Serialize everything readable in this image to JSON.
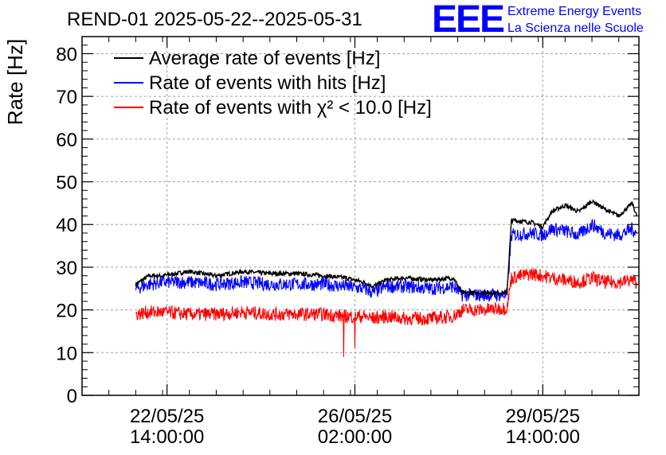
{
  "header": {
    "title": "REND-01 2025-05-22--2025-05-31",
    "logo_text": "EEE",
    "org_line1": "Extreme Energy Events",
    "org_line2": "La Scienza nelle Scuole"
  },
  "colors": {
    "avg": "#000000",
    "hits": "#0000ff",
    "chi2": "#ff0000",
    "logo": "#0000ff"
  },
  "chart_data": {
    "type": "line",
    "title": "REND-01 2025-05-22--2025-05-31",
    "ylabel": "Rate [Hz]",
    "xlabel": "",
    "ylim": [
      0,
      84
    ],
    "yticks": [
      0,
      10,
      20,
      30,
      40,
      50,
      60,
      70,
      80
    ],
    "xlim": [
      "2025-05-21 00:00",
      "2025-05-31 09:00"
    ],
    "xticks": [
      {
        "at": "2025-05-22 14:00",
        "line1": "22/05/25",
        "line2": "14:00:00"
      },
      {
        "at": "2025-05-26 02:00",
        "line1": "26/05/25",
        "line2": "02:00:00"
      },
      {
        "at": "2025-05-29 14:00",
        "line1": "29/05/25",
        "line2": "14:00:00"
      }
    ],
    "grid": true,
    "legend_position": "top-left",
    "series": [
      {
        "name": "Average rate of events [Hz]",
        "color": "#000000",
        "points": [
          [
            "2025-05-22 00:00",
            26.0
          ],
          [
            "2025-05-22 06:00",
            28.0
          ],
          [
            "2025-05-22 12:00",
            28.0
          ],
          [
            "2025-05-23 00:00",
            29.0
          ],
          [
            "2025-05-23 12:00",
            28.0
          ],
          [
            "2025-05-24 00:00",
            29.0
          ],
          [
            "2025-05-24 12:00",
            28.5
          ],
          [
            "2025-05-25 00:00",
            28.5
          ],
          [
            "2025-05-25 12:00",
            28.0
          ],
          [
            "2025-05-25 22:00",
            27.5
          ],
          [
            "2025-05-26 06:00",
            26.5
          ],
          [
            "2025-05-26 10:00",
            25.5
          ],
          [
            "2025-05-26 16:00",
            27.0
          ],
          [
            "2025-05-27 00:00",
            27.5
          ],
          [
            "2025-05-27 12:00",
            27.0
          ],
          [
            "2025-05-27 22:00",
            27.5
          ],
          [
            "2025-05-28 02:00",
            24.0
          ],
          [
            "2025-05-28 12:00",
            24.0
          ],
          [
            "2025-05-28 22:00",
            24.0
          ],
          [
            "2025-05-29 00:00",
            41.0
          ],
          [
            "2025-05-29 09:00",
            40.5
          ],
          [
            "2025-05-29 14:00",
            39.5
          ],
          [
            "2025-05-29 18:00",
            43.0
          ],
          [
            "2025-05-30 00:00",
            44.5
          ],
          [
            "2025-05-30 06:00",
            43.0
          ],
          [
            "2025-05-30 12:00",
            45.5
          ],
          [
            "2025-05-30 18:00",
            43.5
          ],
          [
            "2025-05-31 00:00",
            42.0
          ],
          [
            "2025-05-31 06:00",
            45.0
          ],
          [
            "2025-05-31 08:00",
            42.0
          ]
        ]
      },
      {
        "name": "Rate of events with hits [Hz]",
        "color": "#0000ff",
        "points": [
          [
            "2025-05-22 00:00",
            25.0
          ],
          [
            "2025-05-22 06:00",
            26.0
          ],
          [
            "2025-05-22 12:00",
            26.5
          ],
          [
            "2025-05-23 00:00",
            26.5
          ],
          [
            "2025-05-23 12:00",
            26.0
          ],
          [
            "2025-05-24 00:00",
            26.5
          ],
          [
            "2025-05-24 12:00",
            26.0
          ],
          [
            "2025-05-25 00:00",
            26.0
          ],
          [
            "2025-05-25 12:00",
            26.0
          ],
          [
            "2025-05-25 22:00",
            25.5
          ],
          [
            "2025-05-26 06:00",
            25.0
          ],
          [
            "2025-05-26 10:00",
            24.0
          ],
          [
            "2025-05-26 16:00",
            25.5
          ],
          [
            "2025-05-27 00:00",
            25.5
          ],
          [
            "2025-05-27 12:00",
            25.0
          ],
          [
            "2025-05-27 22:00",
            25.5
          ],
          [
            "2025-05-28 02:00",
            23.5
          ],
          [
            "2025-05-28 12:00",
            23.5
          ],
          [
            "2025-05-28 22:00",
            23.5
          ],
          [
            "2025-05-29 00:00",
            37.5
          ],
          [
            "2025-05-29 09:00",
            38.0
          ],
          [
            "2025-05-29 14:00",
            37.5
          ],
          [
            "2025-05-29 18:00",
            39.0
          ],
          [
            "2025-05-30 00:00",
            38.5
          ],
          [
            "2025-05-30 06:00",
            37.5
          ],
          [
            "2025-05-30 12:00",
            40.0
          ],
          [
            "2025-05-30 18:00",
            38.0
          ],
          [
            "2025-05-31 00:00",
            37.5
          ],
          [
            "2025-05-31 06:00",
            39.0
          ],
          [
            "2025-05-31 08:00",
            38.0
          ]
        ]
      },
      {
        "name": "Rate of events with χ² < 10.0 [Hz]",
        "color": "#ff0000",
        "points": [
          [
            "2025-05-22 00:00",
            19.0
          ],
          [
            "2025-05-22 06:00",
            19.5
          ],
          [
            "2025-05-22 12:00",
            19.5
          ],
          [
            "2025-05-23 00:00",
            19.0
          ],
          [
            "2025-05-23 12:00",
            19.0
          ],
          [
            "2025-05-24 00:00",
            19.5
          ],
          [
            "2025-05-24 12:00",
            19.0
          ],
          [
            "2025-05-25 00:00",
            19.0
          ],
          [
            "2025-05-25 12:00",
            19.0
          ],
          [
            "2025-05-25 22:00",
            18.5
          ],
          [
            "2025-05-26 06:00",
            18.5
          ],
          [
            "2025-05-26 10:00",
            18.0
          ],
          [
            "2025-05-26 16:00",
            18.5
          ],
          [
            "2025-05-27 00:00",
            18.0
          ],
          [
            "2025-05-27 12:00",
            18.0
          ],
          [
            "2025-05-27 22:00",
            18.5
          ],
          [
            "2025-05-28 02:00",
            20.0
          ],
          [
            "2025-05-28 12:00",
            20.0
          ],
          [
            "2025-05-28 22:00",
            20.5
          ],
          [
            "2025-05-29 00:00",
            27.5
          ],
          [
            "2025-05-29 09:00",
            28.5
          ],
          [
            "2025-05-29 14:00",
            28.0
          ],
          [
            "2025-05-29 18:00",
            27.5
          ],
          [
            "2025-05-30 00:00",
            27.0
          ],
          [
            "2025-05-30 06:00",
            26.5
          ],
          [
            "2025-05-30 12:00",
            27.5
          ],
          [
            "2025-05-30 18:00",
            26.5
          ],
          [
            "2025-05-31 00:00",
            26.5
          ],
          [
            "2025-05-31 06:00",
            27.0
          ],
          [
            "2025-05-31 08:00",
            26.5
          ]
        ],
        "dips": [
          [
            "2025-05-25 21:00",
            9.0
          ],
          [
            "2025-05-26 02:00",
            11.0
          ]
        ]
      }
    ]
  }
}
